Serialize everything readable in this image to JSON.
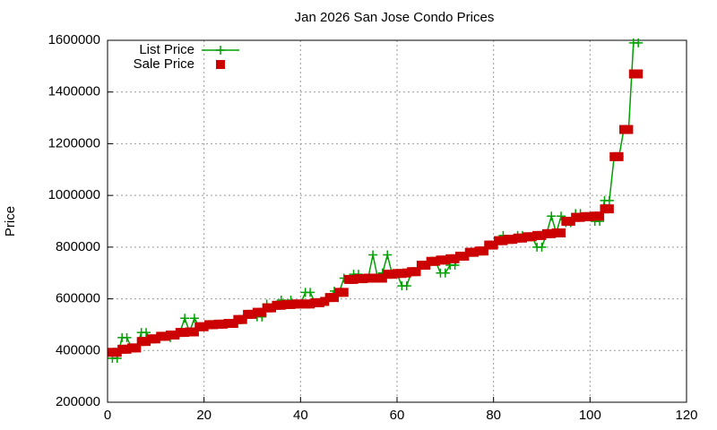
{
  "chart_data": {
    "type": "scatter",
    "title": "Jan 2026 San Jose Condo Prices",
    "y_label": "Price",
    "x": [
      1,
      2,
      3,
      4,
      5,
      6,
      7,
      8,
      9,
      10,
      11,
      12,
      13,
      14,
      15,
      16,
      17,
      18,
      19,
      20,
      21,
      22,
      23,
      24,
      25,
      26,
      27,
      28,
      29,
      30,
      31,
      32,
      33,
      34,
      35,
      36,
      37,
      38,
      39,
      40,
      41,
      42,
      43,
      44,
      45,
      46,
      47,
      48,
      49,
      50,
      51,
      52,
      53,
      54,
      55,
      56,
      57,
      58,
      59,
      60,
      61,
      62,
      63,
      64,
      65,
      66,
      67,
      68,
      69,
      70,
      71,
      72,
      73,
      74,
      75,
      76,
      77,
      78,
      79,
      80,
      81,
      82,
      83,
      84,
      85,
      86,
      87,
      88,
      89,
      90,
      91,
      92,
      93,
      94,
      95,
      96,
      97,
      98,
      99,
      100,
      101,
      102,
      103,
      104,
      105,
      106,
      107,
      108,
      109,
      110
    ],
    "series": [
      {
        "name": "List Price",
        "color": "#00a000",
        "line": true,
        "marker": "plus",
        "values": [
          370000,
          370000,
          450000,
          450000,
          410000,
          410000,
          470000,
          470000,
          445000,
          445000,
          455000,
          455000,
          450000,
          460000,
          470000,
          525000,
          472000,
          525000,
          492000,
          492000,
          500000,
          500000,
          502000,
          502000,
          505000,
          505000,
          505000,
          520000,
          540000,
          540000,
          530000,
          530000,
          580000,
          565000,
          575000,
          595000,
          578000,
          595000,
          580000,
          580000,
          625000,
          625000,
          585000,
          585000,
          590000,
          605000,
          630000,
          625000,
          680000,
          675000,
          695000,
          695000,
          678000,
          680000,
          770000,
          680000,
          700000,
          770000,
          695000,
          698000,
          650000,
          650000,
          705000,
          705000,
          730000,
          730000,
          745000,
          745000,
          700000,
          700000,
          730000,
          730000,
          765000,
          765000,
          780000,
          780000,
          785000,
          785000,
          808000,
          808000,
          825000,
          845000,
          830000,
          830000,
          845000,
          845000,
          840000,
          840000,
          800000,
          800000,
          852000,
          920000,
          855000,
          920000,
          895000,
          895000,
          930000,
          930000,
          918000,
          918000,
          900000,
          900000,
          980000,
          980000,
          1150000,
          1150000,
          1255000,
          1255000,
          1590000,
          1590000
        ]
      },
      {
        "name": "Sale Price",
        "color": "#cc0000",
        "line": false,
        "marker": "square",
        "values": [
          393000,
          393000,
          405000,
          405000,
          410000,
          410000,
          435000,
          435000,
          445000,
          445000,
          455000,
          455000,
          460000,
          460000,
          470000,
          470000,
          472000,
          472000,
          492000,
          492000,
          500000,
          500000,
          502000,
          502000,
          505000,
          505000,
          520000,
          520000,
          540000,
          540000,
          548000,
          548000,
          565000,
          565000,
          575000,
          575000,
          578000,
          578000,
          580000,
          580000,
          580000,
          580000,
          585000,
          585000,
          590000,
          605000,
          605000,
          625000,
          625000,
          675000,
          675000,
          678000,
          678000,
          680000,
          680000,
          680000,
          680000,
          695000,
          695000,
          698000,
          698000,
          700000,
          705000,
          705000,
          730000,
          730000,
          745000,
          745000,
          750000,
          750000,
          755000,
          755000,
          765000,
          765000,
          780000,
          780000,
          785000,
          785000,
          808000,
          808000,
          825000,
          825000,
          830000,
          830000,
          835000,
          835000,
          840000,
          840000,
          845000,
          845000,
          852000,
          852000,
          855000,
          855000,
          900000,
          900000,
          915000,
          915000,
          918000,
          918000,
          920000,
          920000,
          948000,
          948000,
          1150000,
          1150000,
          1255000,
          1255000,
          1470000,
          1470000
        ]
      }
    ],
    "xlim": [
      0,
      120
    ],
    "xticks": [
      0,
      20,
      40,
      60,
      80,
      100,
      120
    ],
    "ylim": [
      200000,
      1600000
    ],
    "yticks": [
      200000,
      400000,
      600000,
      800000,
      1000000,
      1200000,
      1400000,
      1600000
    ],
    "grid": true,
    "legend": "top-left"
  }
}
